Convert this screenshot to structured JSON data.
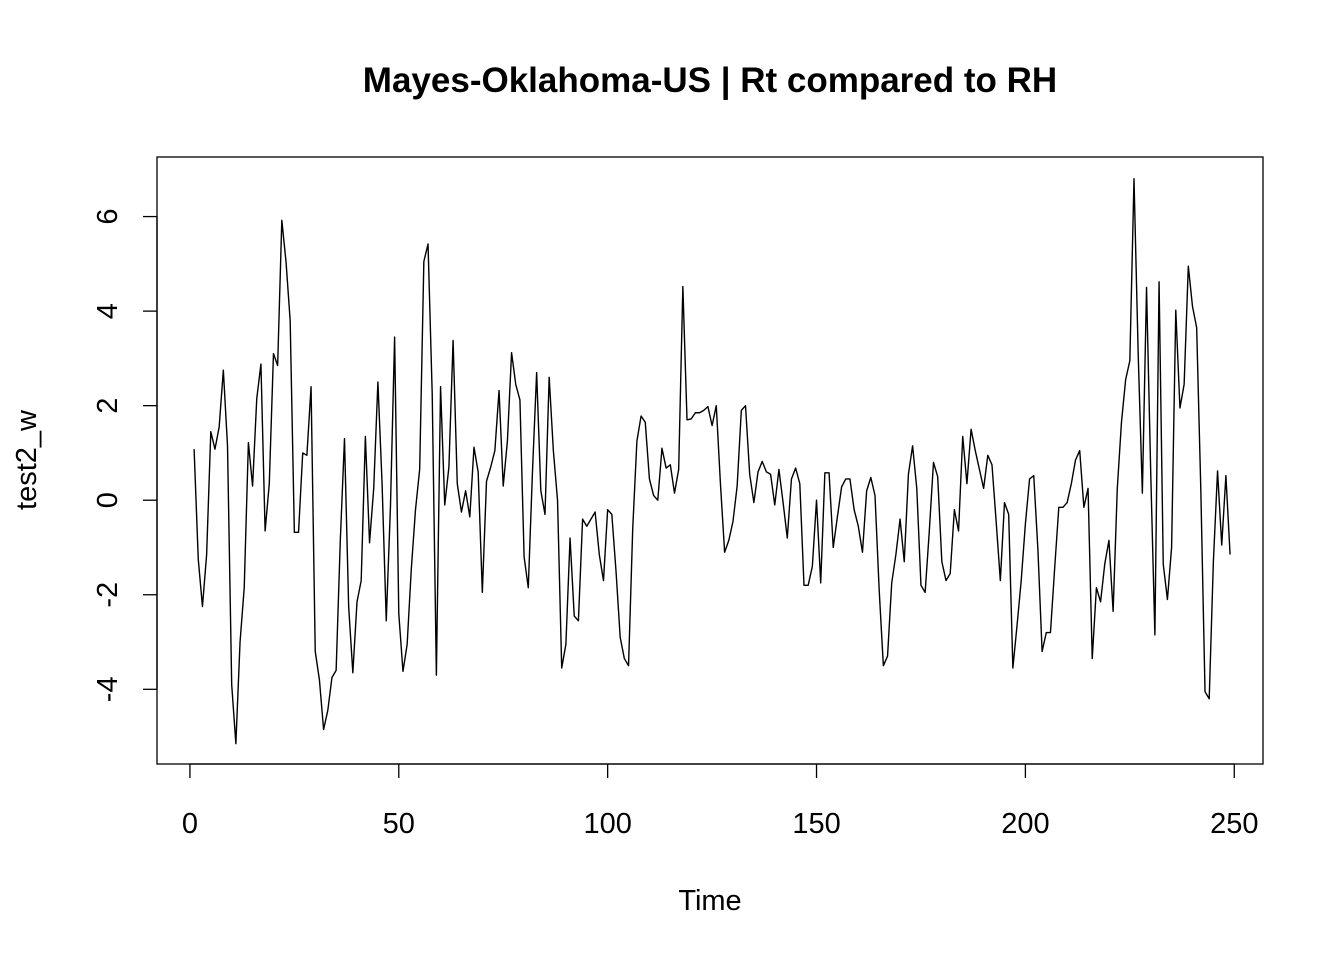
{
  "chart_data": {
    "type": "line",
    "title": "Mayes-Oklahoma-US | Rt compared to RH",
    "xlabel": "Time",
    "ylabel": "test2_w",
    "xlim": [
      -7.88,
      256.88
    ],
    "ylim": [
      -5.58,
      7.26
    ],
    "x_ticks": [
      0,
      50,
      100,
      150,
      200,
      250
    ],
    "y_ticks": [
      -4,
      -2,
      0,
      2,
      4,
      6
    ],
    "x_tick_labels": [
      "0",
      "50",
      "100",
      "150",
      "200",
      "250"
    ],
    "y_tick_labels": [
      "-4",
      "-2",
      "0",
      "2",
      "4",
      "6"
    ],
    "grid": false,
    "line_color": "#000000",
    "x_start": 1,
    "series": [
      {
        "values": [
          1.08,
          -1.25,
          -2.25,
          -1.15,
          1.45,
          1.08,
          1.55,
          2.75,
          1.15,
          -3.9,
          -5.15,
          -3.0,
          -1.85,
          1.22,
          0.3,
          2.15,
          2.88,
          -0.65,
          0.35,
          3.1,
          2.85,
          5.92,
          5.05,
          3.8,
          -0.68,
          -0.68,
          1.0,
          0.95,
          2.4,
          -3.2,
          -3.8,
          -4.85,
          -4.45,
          -3.75,
          -3.6,
          -0.85,
          1.3,
          -2.25,
          -3.65,
          -2.15,
          -1.7,
          1.35,
          -0.9,
          0.25,
          2.5,
          0.35,
          -2.55,
          -0.15,
          3.45,
          -2.4,
          -3.62,
          -3.05,
          -1.45,
          -0.2,
          0.65,
          5.05,
          5.42,
          2.25,
          -3.7,
          2.4,
          -0.1,
          0.7,
          3.38,
          0.35,
          -0.25,
          0.2,
          -0.35,
          1.12,
          0.6,
          -1.95,
          0.4,
          0.7,
          1.05,
          2.32,
          0.3,
          1.25,
          3.12,
          2.45,
          2.12,
          -1.2,
          -1.85,
          0.6,
          2.7,
          0.2,
          -0.3,
          2.6,
          1.05,
          0.0,
          -3.55,
          -3.05,
          -0.8,
          -2.45,
          -2.55,
          -0.4,
          -0.55,
          -0.4,
          -0.25,
          -1.15,
          -1.7,
          -0.2,
          -0.3,
          -1.5,
          -2.9,
          -3.35,
          -3.5,
          -0.6,
          1.25,
          1.78,
          1.65,
          0.45,
          0.1,
          0.0,
          1.1,
          0.68,
          0.75,
          0.15,
          0.65,
          4.52,
          1.7,
          1.72,
          1.85,
          1.85,
          1.9,
          1.98,
          1.58,
          2.0,
          0.35,
          -1.1,
          -0.85,
          -0.45,
          0.3,
          1.9,
          2.0,
          0.55,
          -0.05,
          0.6,
          0.82,
          0.6,
          0.55,
          -0.1,
          0.65,
          -0.05,
          -0.8,
          0.45,
          0.68,
          0.35,
          -1.8,
          -1.8,
          -1.4,
          0.0,
          -1.75,
          0.58,
          0.58,
          -1.0,
          -0.35,
          0.28,
          0.45,
          0.45,
          -0.2,
          -0.55,
          -1.1,
          0.2,
          0.48,
          0.1,
          -1.9,
          -3.5,
          -3.3,
          -1.75,
          -1.15,
          -0.4,
          -1.3,
          0.55,
          1.15,
          0.25,
          -1.8,
          -1.95,
          -0.65,
          0.8,
          0.5,
          -1.3,
          -1.7,
          -1.55,
          -0.2,
          -0.65,
          1.35,
          0.35,
          1.5,
          1.05,
          0.65,
          0.25,
          0.95,
          0.75,
          -0.45,
          -1.7,
          -0.05,
          -0.3,
          -3.55,
          -2.65,
          -1.7,
          -0.5,
          0.45,
          0.52,
          -1.05,
          -3.2,
          -2.8,
          -2.8,
          -1.45,
          -0.15,
          -0.15,
          -0.05,
          0.35,
          0.85,
          1.05,
          -0.15,
          0.25,
          -3.35,
          -1.85,
          -2.15,
          -1.35,
          -0.85,
          -2.35,
          0.25,
          1.65,
          2.55,
          2.95,
          6.8,
          3.1,
          0.15,
          4.5,
          0.6,
          -2.85,
          4.62,
          -1.35,
          -2.1,
          -1.0,
          4.02,
          1.95,
          2.45,
          4.95,
          4.1,
          3.65,
          0.2,
          -4.05,
          -4.2,
          -1.3,
          0.62,
          -0.95,
          0.52,
          -1.15
        ]
      }
    ]
  }
}
